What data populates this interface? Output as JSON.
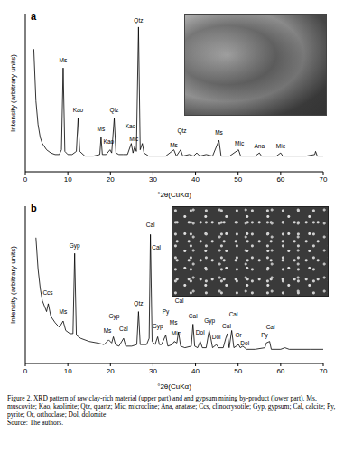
{
  "chart_data": [
    {
      "type": "line",
      "title": "a",
      "x_label": "°2θ(CuKα)",
      "y_label": "Intensity (arbitrary units)",
      "color": "#000000",
      "xlim": [
        0,
        70
      ],
      "xticks": [
        0,
        10,
        20,
        30,
        40,
        50,
        60,
        70
      ],
      "ylim": [
        0,
        100
      ],
      "yticks": [],
      "tick_labels": "x",
      "x": [
        2,
        2.5,
        3,
        3.5,
        4,
        5,
        6,
        7,
        8,
        8.5,
        8.9,
        9.3,
        10,
        11,
        12,
        12.4,
        12.8,
        14,
        16,
        17.5,
        17.8,
        18.1,
        19,
        19.9,
        20.3,
        20.9,
        21.3,
        22,
        23,
        24,
        24.9,
        25.3,
        25.7,
        26.1,
        26.6,
        27,
        27.5,
        27.9,
        29,
        31,
        33,
        34.9,
        35.5,
        36.5,
        37,
        38.5,
        39.5,
        40.3,
        41,
        42.5,
        44,
        45.5,
        46,
        48,
        50.1,
        50.6,
        52,
        54,
        55,
        55.5,
        57,
        59,
        60,
        60.5,
        62,
        64,
        66,
        68,
        68.2,
        68.6,
        70
      ],
      "values": [
        78,
        45,
        30,
        22,
        18,
        14,
        12,
        11,
        11,
        14,
        66,
        13,
        11,
        11,
        13,
        34,
        13,
        10,
        10,
        11,
        22,
        11,
        11,
        14,
        12,
        34,
        12,
        11,
        11,
        11,
        18,
        12,
        16,
        13,
        92,
        14,
        18,
        12,
        10,
        10,
        10,
        14,
        10,
        14,
        10,
        11,
        10,
        12,
        10,
        11,
        10,
        20,
        10,
        10,
        14,
        10,
        10,
        10,
        12,
        10,
        10,
        10,
        12,
        10,
        10,
        10,
        10,
        11,
        13,
        10,
        10
      ],
      "annotations": [
        {
          "text": "Ms",
          "x": 8.9,
          "y": 71
        },
        {
          "text": "Kao",
          "x": 12.4,
          "y": 39
        },
        {
          "text": "Ms",
          "x": 17.8,
          "y": 27
        },
        {
          "text": "Kao",
          "x": 19.6,
          "y": 19
        },
        {
          "text": "Qtz",
          "x": 20.9,
          "y": 39
        },
        {
          "text": "Kao",
          "x": 24.7,
          "y": 29
        },
        {
          "text": "Mic",
          "x": 25.5,
          "y": 21
        },
        {
          "text": "Qtz",
          "x": 26.6,
          "y": 96
        },
        {
          "text": "Ms",
          "x": 34.9,
          "y": 17
        },
        {
          "text": "Qtz",
          "x": 36.8,
          "y": 26
        },
        {
          "text": "Ms",
          "x": 45.5,
          "y": 25
        },
        {
          "text": "Mic",
          "x": 50.3,
          "y": 18
        },
        {
          "text": "Ana",
          "x": 55,
          "y": 16
        },
        {
          "text": "Mic",
          "x": 60,
          "y": 16
        }
      ]
    },
    {
      "type": "line",
      "title": "b",
      "x_label": "°2θ(CuKα)",
      "y_label": "Intensity (arbitrary units)",
      "color": "#000000",
      "xlim": [
        0,
        70
      ],
      "xticks": [
        0,
        10,
        20,
        30,
        40,
        50,
        60,
        70
      ],
      "ylim": [
        0,
        100
      ],
      "yticks": [],
      "tick_labels": "x",
      "x": [
        2.5,
        3,
        3.5,
        4,
        5,
        5.4,
        6,
        7,
        8,
        8.9,
        9.5,
        10.5,
        11.2,
        11.6,
        12,
        13,
        15,
        17,
        18.5,
        19.6,
        20.3,
        20.7,
        21.2,
        22,
        23.1,
        23.6,
        25,
        26.2,
        26.6,
        27,
        27.9,
        28.5,
        29.1,
        29.4,
        29.8,
        30.5,
        31.1,
        31.5,
        32,
        33,
        33.5,
        34.5,
        35,
        35.6,
        36,
        36.5,
        37.5,
        39,
        39.4,
        39.8,
        40.5,
        41.1,
        41.6,
        42.5,
        43.2,
        43.6,
        44,
        44.9,
        45.4,
        46.5,
        47.1,
        47.5,
        47.9,
        48.5,
        49,
        50.1,
        50.5,
        51.1,
        52,
        54,
        56.3,
        56.6,
        57.4,
        57.8,
        60,
        61,
        62,
        65,
        67,
        70
      ],
      "values": [
        80,
        60,
        48,
        40,
        33,
        38,
        30,
        26,
        23,
        27,
        21,
        19,
        19,
        70,
        18,
        16,
        14,
        13,
        12,
        15,
        13,
        17,
        12,
        11,
        16,
        11,
        11,
        12,
        33,
        12,
        12,
        12,
        16,
        82,
        14,
        12,
        17,
        12,
        12,
        18,
        11,
        12,
        14,
        13,
        20,
        11,
        10,
        11,
        25,
        11,
        10,
        14,
        10,
        10,
        21,
        16,
        10,
        12,
        10,
        10,
        16,
        19,
        10,
        21,
        10,
        12,
        10,
        11,
        9,
        9,
        10,
        13,
        14,
        9,
        9,
        10,
        9,
        9,
        9,
        9
      ],
      "annotations": [
        {
          "text": "Ccs",
          "x": 5.3,
          "y": 45
        },
        {
          "text": "Ms",
          "x": 8.9,
          "y": 33
        },
        {
          "text": "Gyp",
          "x": 11.6,
          "y": 75
        },
        {
          "text": "Ms",
          "x": 19.3,
          "y": 21
        },
        {
          "text": "Gyp",
          "x": 20.9,
          "y": 30
        },
        {
          "text": "Cal",
          "x": 23.1,
          "y": 22
        },
        {
          "text": "Qtz",
          "x": 26.6,
          "y": 38
        },
        {
          "text": "Cal",
          "x": 29.4,
          "y": 88
        },
        {
          "text": "Cal",
          "x": 30.8,
          "y": 74
        },
        {
          "text": "Gyp",
          "x": 31.1,
          "y": 24
        },
        {
          "text": "Py",
          "x": 33,
          "y": 33
        },
        {
          "text": "Ms",
          "x": 34.8,
          "y": 26
        },
        {
          "text": "Mic",
          "x": 35.4,
          "y": 19
        },
        {
          "text": "Cal",
          "x": 36.2,
          "y": 40
        },
        {
          "text": "Cal",
          "x": 39.4,
          "y": 30
        },
        {
          "text": "Dol",
          "x": 41.1,
          "y": 20
        },
        {
          "text": "Gyp",
          "x": 43.3,
          "y": 27
        },
        {
          "text": "Dol",
          "x": 44.9,
          "y": 17
        },
        {
          "text": "Cal",
          "x": 47.3,
          "y": 24
        },
        {
          "text": "Cal",
          "x": 48.9,
          "y": 31
        },
        {
          "text": "Or",
          "x": 50.1,
          "y": 18
        },
        {
          "text": "Dol",
          "x": 51.6,
          "y": 13
        },
        {
          "text": "Py",
          "x": 56.2,
          "y": 18
        },
        {
          "text": "Cal",
          "x": 57.6,
          "y": 23
        }
      ]
    }
  ],
  "caption": "Figure 2. XRD pattern of raw clay-rich material (upper part) and and gypsum mining by-product (lower part). Ms, muscovite; Kao, kaolinite; Qtz, quartz; Mic, microcline; Ana, anatase; Ccs, clinocrysotile; Gyp, gypsum; Cal, calcite; Py, pyrite; Or, orthoclase; Dol, dolomite",
  "source": "Source: The authors."
}
